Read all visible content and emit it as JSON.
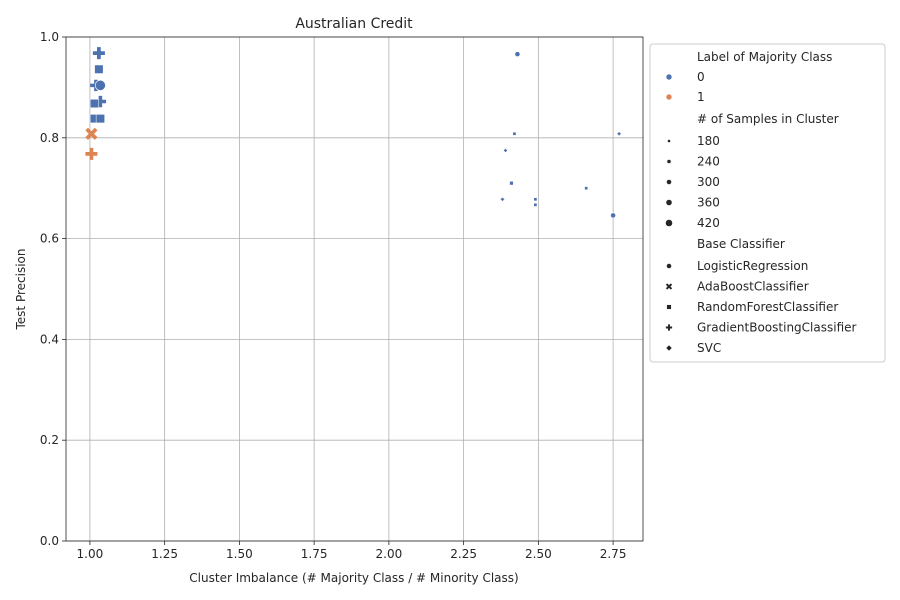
{
  "chart_data": {
    "type": "scatter",
    "title": "Australian Credit",
    "xlabel": "Cluster Imbalance (# Majority Class / # Minority Class)",
    "ylabel": "Test Precision",
    "xlim": [
      0.92,
      2.85
    ],
    "ylim": [
      0.0,
      1.0
    ],
    "xticks": [
      "1.00",
      "1.25",
      "1.50",
      "1.75",
      "2.00",
      "2.25",
      "2.50",
      "2.75"
    ],
    "xtick_values": [
      1.0,
      1.25,
      1.5,
      1.75,
      2.0,
      2.25,
      2.5,
      2.75
    ],
    "yticks": [
      "0.0",
      "0.2",
      "0.4",
      "0.6",
      "0.8",
      "1.0"
    ],
    "ytick_values": [
      0.0,
      0.2,
      0.4,
      0.6,
      0.8,
      1.0
    ],
    "grid": true,
    "legend_position": "outside-right",
    "colors": {
      "0": "#4c72b0",
      "1": "#dd8452"
    },
    "legend": {
      "hue_title": "Label of Majority Class",
      "hue_items": [
        {
          "label": "0",
          "key": "0"
        },
        {
          "label": "1",
          "key": "1"
        }
      ],
      "size_title": "# of Samples in Cluster",
      "size_items": [
        "180",
        "240",
        "300",
        "360",
        "420"
      ],
      "style_title": "Base Classifier",
      "style_items": [
        {
          "label": "LogisticRegression",
          "marker": "circle"
        },
        {
          "label": "AdaBoostClassifier",
          "marker": "x"
        },
        {
          "label": "RandomForestClassifier",
          "marker": "square"
        },
        {
          "label": "GradientBoostingClassifier",
          "marker": "plus"
        },
        {
          "label": "SVC",
          "marker": "diamond"
        }
      ]
    },
    "points": [
      {
        "x": 1.03,
        "y": 0.968,
        "label": 0,
        "samples": 420,
        "classifier": "GradientBoostingClassifier"
      },
      {
        "x": 1.03,
        "y": 0.936,
        "label": 0,
        "samples": 400,
        "classifier": "RandomForestClassifier"
      },
      {
        "x": 1.02,
        "y": 0.904,
        "label": 0,
        "samples": 400,
        "classifier": "GradientBoostingClassifier"
      },
      {
        "x": 1.035,
        "y": 0.904,
        "label": 0,
        "samples": 430,
        "classifier": "LogisticRegression"
      },
      {
        "x": 1.035,
        "y": 0.872,
        "label": 0,
        "samples": 400,
        "classifier": "GradientBoostingClassifier"
      },
      {
        "x": 1.015,
        "y": 0.868,
        "label": 0,
        "samples": 400,
        "classifier": "RandomForestClassifier"
      },
      {
        "x": 1.015,
        "y": 0.838,
        "label": 0,
        "samples": 400,
        "classifier": "RandomForestClassifier"
      },
      {
        "x": 1.035,
        "y": 0.838,
        "label": 0,
        "samples": 400,
        "classifier": "RandomForestClassifier"
      },
      {
        "x": 1.005,
        "y": 0.808,
        "label": 1,
        "samples": 420,
        "classifier": "AdaBoostClassifier"
      },
      {
        "x": 1.005,
        "y": 0.768,
        "label": 1,
        "samples": 420,
        "classifier": "GradientBoostingClassifier"
      },
      {
        "x": 2.43,
        "y": 0.966,
        "label": 0,
        "samples": 240,
        "classifier": "LogisticRegression"
      },
      {
        "x": 2.42,
        "y": 0.808,
        "label": 0,
        "samples": 180,
        "classifier": "RandomForestClassifier"
      },
      {
        "x": 2.77,
        "y": 0.808,
        "label": 0,
        "samples": 180,
        "classifier": "SVC"
      },
      {
        "x": 2.39,
        "y": 0.775,
        "label": 0,
        "samples": 180,
        "classifier": "SVC"
      },
      {
        "x": 2.41,
        "y": 0.71,
        "label": 0,
        "samples": 200,
        "classifier": "RandomForestClassifier"
      },
      {
        "x": 2.66,
        "y": 0.7,
        "label": 0,
        "samples": 180,
        "classifier": "RandomForestClassifier"
      },
      {
        "x": 2.38,
        "y": 0.678,
        "label": 0,
        "samples": 180,
        "classifier": "SVC"
      },
      {
        "x": 2.49,
        "y": 0.678,
        "label": 0,
        "samples": 180,
        "classifier": "RandomForestClassifier"
      },
      {
        "x": 2.49,
        "y": 0.667,
        "label": 0,
        "samples": 180,
        "classifier": "RandomForestClassifier"
      },
      {
        "x": 2.75,
        "y": 0.646,
        "label": 0,
        "samples": 240,
        "classifier": "LogisticRegression"
      }
    ]
  }
}
